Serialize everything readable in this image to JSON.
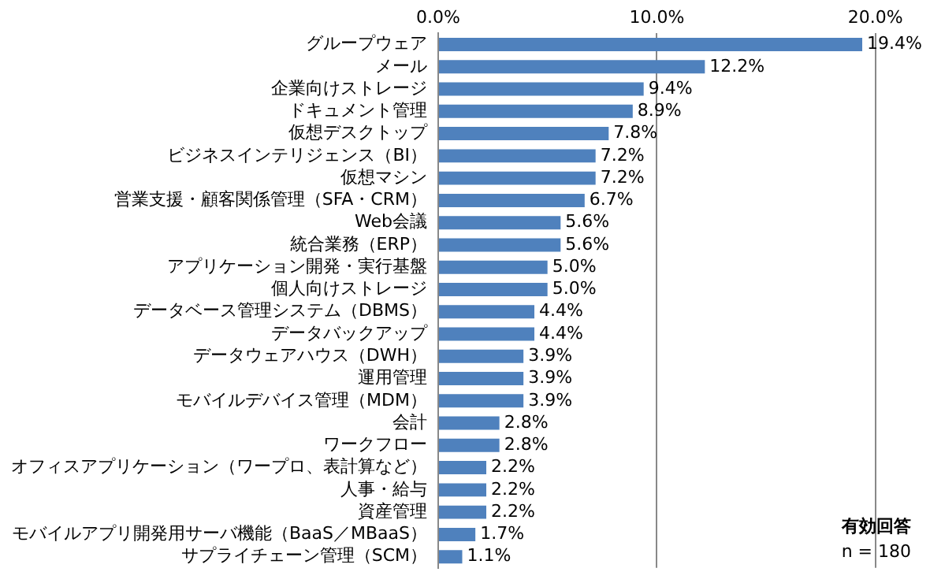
{
  "chart_data": {
    "type": "bar",
    "orientation": "horizontal",
    "categories": [
      "グループウェア",
      "メール",
      "企業向けストレージ",
      "ドキュメント管理",
      "仮想デスクトップ",
      "ビジネスインテリジェンス（BI）",
      "仮想マシン",
      "営業支援・顧客関係管理（SFA・CRM）",
      "Web会議",
      "統合業務（ERP）",
      "アプリケーション開発・実行基盤",
      "個人向けストレージ",
      "データベース管理システム（DBMS）",
      "データバックアップ",
      "データウェアハウス（DWH）",
      "運用管理",
      "モバイルデバイス管理（MDM）",
      "会計",
      "ワークフロー",
      "オフィスアプリケーション（ワープロ、表計算など）",
      "人事・給与",
      "資産管理",
      "モバイルアプリ開発用サーバ機能（BaaS／MBaaS）",
      "サプライチェーン管理（SCM）"
    ],
    "values": [
      19.4,
      12.2,
      9.4,
      8.9,
      7.8,
      7.2,
      7.2,
      6.7,
      5.6,
      5.6,
      5.0,
      5.0,
      4.4,
      4.4,
      3.9,
      3.9,
      3.9,
      2.8,
      2.8,
      2.2,
      2.2,
      2.2,
      1.7,
      1.1
    ],
    "value_labels": [
      "19.4%",
      "12.2%",
      "9.4%",
      "8.9%",
      "7.8%",
      "7.2%",
      "7.2%",
      "6.7%",
      "5.6%",
      "5.6%",
      "5.0%",
      "5.0%",
      "4.4%",
      "4.4%",
      "3.9%",
      "3.9%",
      "3.9%",
      "2.8%",
      "2.8%",
      "2.2%",
      "2.2%",
      "2.2%",
      "1.7%",
      "1.1%"
    ],
    "color": "#4f81bd",
    "xlim": [
      0,
      22.5
    ],
    "xticks": [
      {
        "value": 0,
        "label": "0.0%"
      },
      {
        "value": 10,
        "label": "10.0%"
      },
      {
        "value": 20,
        "label": "20.0%"
      }
    ],
    "grid": "x",
    "legend": false,
    "annotations": [
      "有効回答",
      "n = 180"
    ]
  }
}
